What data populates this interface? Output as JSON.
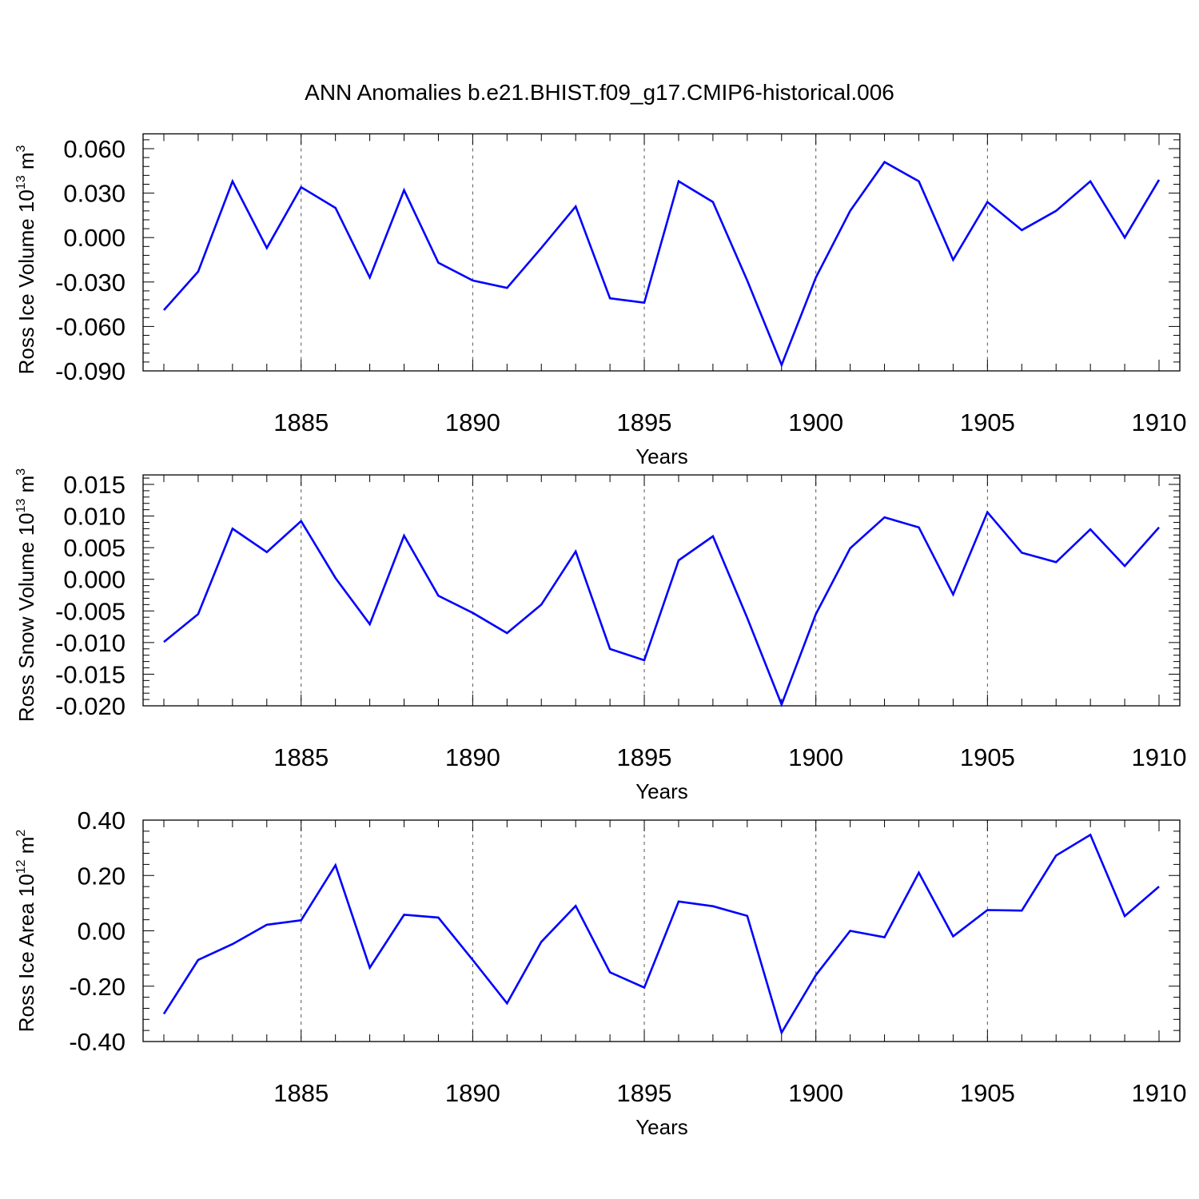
{
  "title": "ANN Anomalies b.e21.BHIST.f09_g17.CMIP6-historical.006",
  "line_color": "#0000ff",
  "chart_data": [
    {
      "type": "line",
      "ylabel": {
        "prefix": "Ross Ice Volume 10",
        "exp1": "13",
        "mid": " m",
        "exp2": "3"
      },
      "xlabel": "Years",
      "xlim": [
        1881,
        1910
      ],
      "ylim": [
        -0.09,
        0.07
      ],
      "yticks": [
        0.06,
        0.03,
        0.0,
        -0.03,
        -0.06,
        -0.09
      ],
      "ytick_labels": [
        "0.060",
        "0.030",
        "0.000",
        "-0.030",
        "-0.060",
        "-0.090"
      ],
      "xticks": [
        1885,
        1890,
        1895,
        1900,
        1905,
        1910
      ],
      "xtick_labels": [
        "1885",
        "1890",
        "1895",
        "1900",
        "1905",
        "1910"
      ],
      "grid": "vertical dashed at labeled years",
      "series": [
        {
          "x": [
            1881,
            1882,
            1883,
            1884,
            1885,
            1886,
            1887,
            1888,
            1889,
            1890,
            1891,
            1892,
            1893,
            1894,
            1895,
            1896,
            1897,
            1898,
            1899,
            1900,
            1901,
            1902,
            1903,
            1904,
            1905,
            1906,
            1907,
            1908,
            1909,
            1910
          ],
          "values": [
            -0.049,
            -0.023,
            0.038,
            -0.007,
            0.034,
            0.02,
            -0.027,
            0.032,
            -0.017,
            -0.029,
            -0.034,
            -0.007,
            0.021,
            -0.041,
            -0.044,
            0.038,
            0.024,
            -0.029,
            -0.086,
            -0.027,
            0.018,
            0.051,
            0.038,
            -0.015,
            0.024,
            0.005,
            0.018,
            0.038,
            0.0,
            0.039
          ]
        }
      ]
    },
    {
      "type": "line",
      "ylabel": {
        "prefix": "Ross Snow Volume 10",
        "exp1": "13",
        "mid": " m",
        "exp2": "3"
      },
      "xlabel": "Years",
      "xlim": [
        1881,
        1910
      ],
      "ylim": [
        -0.02,
        0.0165
      ],
      "yticks": [
        0.015,
        0.01,
        0.005,
        0.0,
        -0.005,
        -0.01,
        -0.015,
        -0.02
      ],
      "ytick_labels": [
        "0.015",
        "0.010",
        "0.005",
        "0.000",
        "-0.005",
        "-0.010",
        "-0.015",
        "-0.020"
      ],
      "xticks": [
        1885,
        1890,
        1895,
        1900,
        1905,
        1910
      ],
      "xtick_labels": [
        "1885",
        "1890",
        "1895",
        "1900",
        "1905",
        "1910"
      ],
      "grid": "vertical dashed at labeled years",
      "series": [
        {
          "x": [
            1881,
            1882,
            1883,
            1884,
            1885,
            1886,
            1887,
            1888,
            1889,
            1890,
            1891,
            1892,
            1893,
            1894,
            1895,
            1896,
            1897,
            1898,
            1899,
            1900,
            1901,
            1902,
            1903,
            1904,
            1905,
            1906,
            1907,
            1908,
            1909,
            1910
          ],
          "values": [
            -0.0099,
            -0.0055,
            0.008,
            0.0043,
            0.0092,
            0.0002,
            -0.0071,
            0.0069,
            -0.0026,
            -0.0053,
            -0.0085,
            -0.004,
            0.0044,
            -0.011,
            -0.0128,
            0.003,
            0.0068,
            -0.0061,
            -0.0198,
            -0.0055,
            0.0049,
            0.0098,
            0.0082,
            -0.0024,
            0.0106,
            0.0042,
            0.0027,
            0.0079,
            0.0021,
            0.0082
          ]
        }
      ]
    },
    {
      "type": "line",
      "ylabel": {
        "prefix": "Ross Ice Area 10",
        "exp1": "12",
        "mid": " m",
        "exp2": "2"
      },
      "xlabel": "Years",
      "xlim": [
        1881,
        1910
      ],
      "ylim": [
        -0.4,
        0.4
      ],
      "yticks": [
        0.4,
        0.2,
        0.0,
        -0.2,
        -0.4
      ],
      "ytick_labels": [
        "0.40",
        "0.20",
        "0.00",
        "-0.20",
        "-0.40"
      ],
      "xticks": [
        1885,
        1890,
        1895,
        1900,
        1905,
        1910
      ],
      "xtick_labels": [
        "1885",
        "1890",
        "1895",
        "1900",
        "1905",
        "1910"
      ],
      "grid": "vertical dashed at labeled years",
      "series": [
        {
          "x": [
            1881,
            1882,
            1883,
            1884,
            1885,
            1886,
            1887,
            1888,
            1889,
            1890,
            1891,
            1892,
            1893,
            1894,
            1895,
            1896,
            1897,
            1898,
            1899,
            1900,
            1901,
            1902,
            1903,
            1904,
            1905,
            1906,
            1907,
            1908,
            1909,
            1910
          ],
          "values": [
            -0.3,
            -0.105,
            -0.048,
            0.022,
            0.038,
            0.237,
            -0.133,
            0.058,
            0.048,
            -0.105,
            -0.262,
            -0.04,
            0.09,
            -0.15,
            -0.205,
            0.106,
            0.089,
            0.054,
            -0.368,
            -0.16,
            0.0,
            -0.023,
            0.21,
            -0.02,
            0.075,
            0.073,
            0.272,
            0.347,
            0.053,
            0.16
          ]
        }
      ]
    }
  ]
}
